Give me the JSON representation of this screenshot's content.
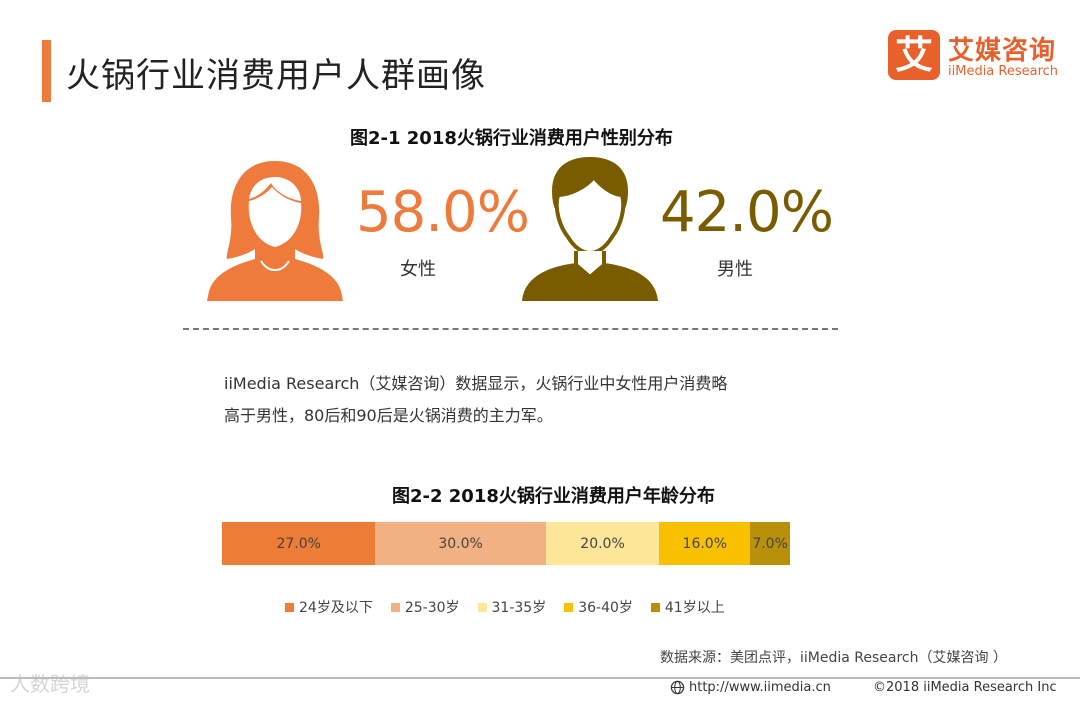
{
  "header": {
    "title": "火锅行业消费用户人群画像",
    "logo_cn": "艾媒咨询",
    "logo_en": "iiMedia Research",
    "logo_mark": "艾"
  },
  "colors": {
    "accent": "#ee7a3b",
    "female": "#ee7a3b",
    "male": "#7a5c00"
  },
  "figure1": {
    "title": "图2-1  2018火锅行业消费用户性别分布",
    "female": {
      "percent": "58.0%",
      "label": "女性",
      "icon": "female-avatar-icon"
    },
    "male": {
      "percent": "42.0%",
      "label": "男性",
      "icon": "male-avatar-icon"
    }
  },
  "description": {
    "line1": "iiMedia Research（艾媒咨询）数据显示，火锅行业中女性用户消费略",
    "line2": "高于男性，80后和90后是火锅消费的主力军。"
  },
  "chart_data": {
    "type": "bar",
    "title": "图2-2 2018火锅行业消费用户年龄分布",
    "categories": [
      "24岁及以下",
      "25-30岁",
      "31-35岁",
      "36-40岁",
      "41岁以上"
    ],
    "values": [
      27.0,
      30.0,
      20.0,
      16.0,
      7.0
    ],
    "data_labels": [
      "27.0%",
      "30.0%",
      "20.0%",
      "16.0%",
      "7.0%"
    ],
    "colors": [
      "#ec7c36",
      "#f2b183",
      "#fde59a",
      "#f9c000",
      "#b8900a"
    ],
    "stacked": true,
    "orientation": "horizontal",
    "legend_position": "bottom"
  },
  "footer": {
    "source": "数据来源：美团点评，iiMedia  Research（艾媒咨询 ）",
    "url": "http://www.iimedia.cn",
    "copyright": "©2018  iiMedia Research  Inc",
    "watermark": "人数跨境"
  }
}
